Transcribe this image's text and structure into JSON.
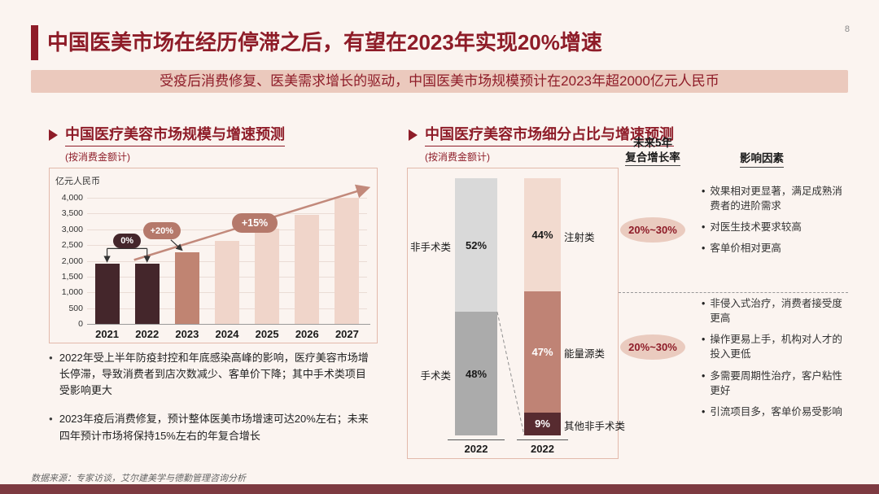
{
  "colors": {
    "accent": "#8E1C28",
    "banner_bg": "#EBC9BD",
    "bar_dark": "#44262B",
    "bar_2023": "#C08472",
    "bar_forecast": "#F0D5CA",
    "gray_light": "#D9D9D9",
    "gray_mid": "#ABABAB",
    "seg_injection": "#F2DACF",
    "seg_energy": "#BF8375",
    "seg_other": "#572B30",
    "oval_bg": "#EACBBF",
    "annotation_rose": "#B5796B",
    "trend_arrow": "#C2897B",
    "bottom_bar": "#7D3A41"
  },
  "page": {
    "number": "8",
    "title": "中国医美市场在经历停滞之后，有望在2023年实现20%增速",
    "banner": "受疫后消费修复、医美需求增长的驱动，中国医美市场规模预计在2023年超2000亿元人民币",
    "footer": "数据来源：专家访谈，艾尔建美学与德勤管理咨询分析"
  },
  "left_section": {
    "title": "中国医疗美容市场规模与增速预测",
    "subtitle": "(按消费金额计)",
    "bullets": [
      "2022年受上半年防疫封控和年底感染高峰的影响，医疗美容市场增长停滞，导致消费者到店次数减少、客单价下降；其中手术类项目受影响更大",
      "2023年疫后消费修复，预计整体医美市场增速可达20%左右；未来四年预计市场将保持15%左右的年复合增长"
    ]
  },
  "right_section": {
    "title": "中国医疗美容市场细分占比与增速预测",
    "subtitle": "(按消费金额计)",
    "growth_header_line1": "未来5年",
    "growth_header_line2": "复合增长率",
    "factors_header": "影响因素",
    "groups": [
      {
        "growth": "20%~30%",
        "factors": [
          "效果相对更显著，满足成熟消费者的进阶需求",
          "对医生技术要求较高",
          "客单价相对更高"
        ]
      },
      {
        "growth": "20%~30%",
        "factors": [
          "非侵入式治疗，消费者接受度更高",
          "操作更易上手，机构对人才的投入更低",
          "多需要周期性治疗，客户粘性更好",
          "引流项目多，客单价易受影响"
        ]
      }
    ]
  },
  "chart_data": [
    {
      "type": "bar",
      "title": "中国医疗美容市场规模与增速预测",
      "subtitle": "(按消费金额计)",
      "ylabel": "亿元人民币",
      "categories": [
        "2021",
        "2022",
        "2023",
        "2024",
        "2025",
        "2026",
        "2027"
      ],
      "values": [
        1900,
        1900,
        2280,
        2620,
        3020,
        3470,
        3990
      ],
      "ylim": [
        0,
        4000
      ],
      "ytick_step": 500,
      "yticks": [
        "0",
        "500",
        "1,000",
        "1,500",
        "2,000",
        "2,500",
        "3,000",
        "3,500",
        "4,000"
      ],
      "annotations": [
        "0%",
        "+20%",
        "+15%"
      ],
      "bar_styles": [
        "dark",
        "dark",
        "highlight",
        "forecast",
        "forecast",
        "forecast",
        "forecast"
      ],
      "grid": true,
      "legend": "none"
    },
    {
      "type": "stacked-bar",
      "title": "中国医疗美容市场细分占比与增速预测",
      "subtitle": "(按消费金额计)",
      "unit": "%",
      "bars": [
        {
          "x_label": "2022",
          "segments": [
            {
              "label": "非手术类",
              "value": 52,
              "label_side": "left"
            },
            {
              "label": "手术类",
              "value": 48,
              "label_side": "left"
            }
          ]
        },
        {
          "x_label": "2022",
          "segments": [
            {
              "label": "注射类",
              "value": 44,
              "label_side": "right"
            },
            {
              "label": "能量源类",
              "value": 47,
              "label_side": "right"
            },
            {
              "label": "其他非手术类",
              "value": 9,
              "label_side": "right"
            }
          ]
        }
      ]
    }
  ]
}
